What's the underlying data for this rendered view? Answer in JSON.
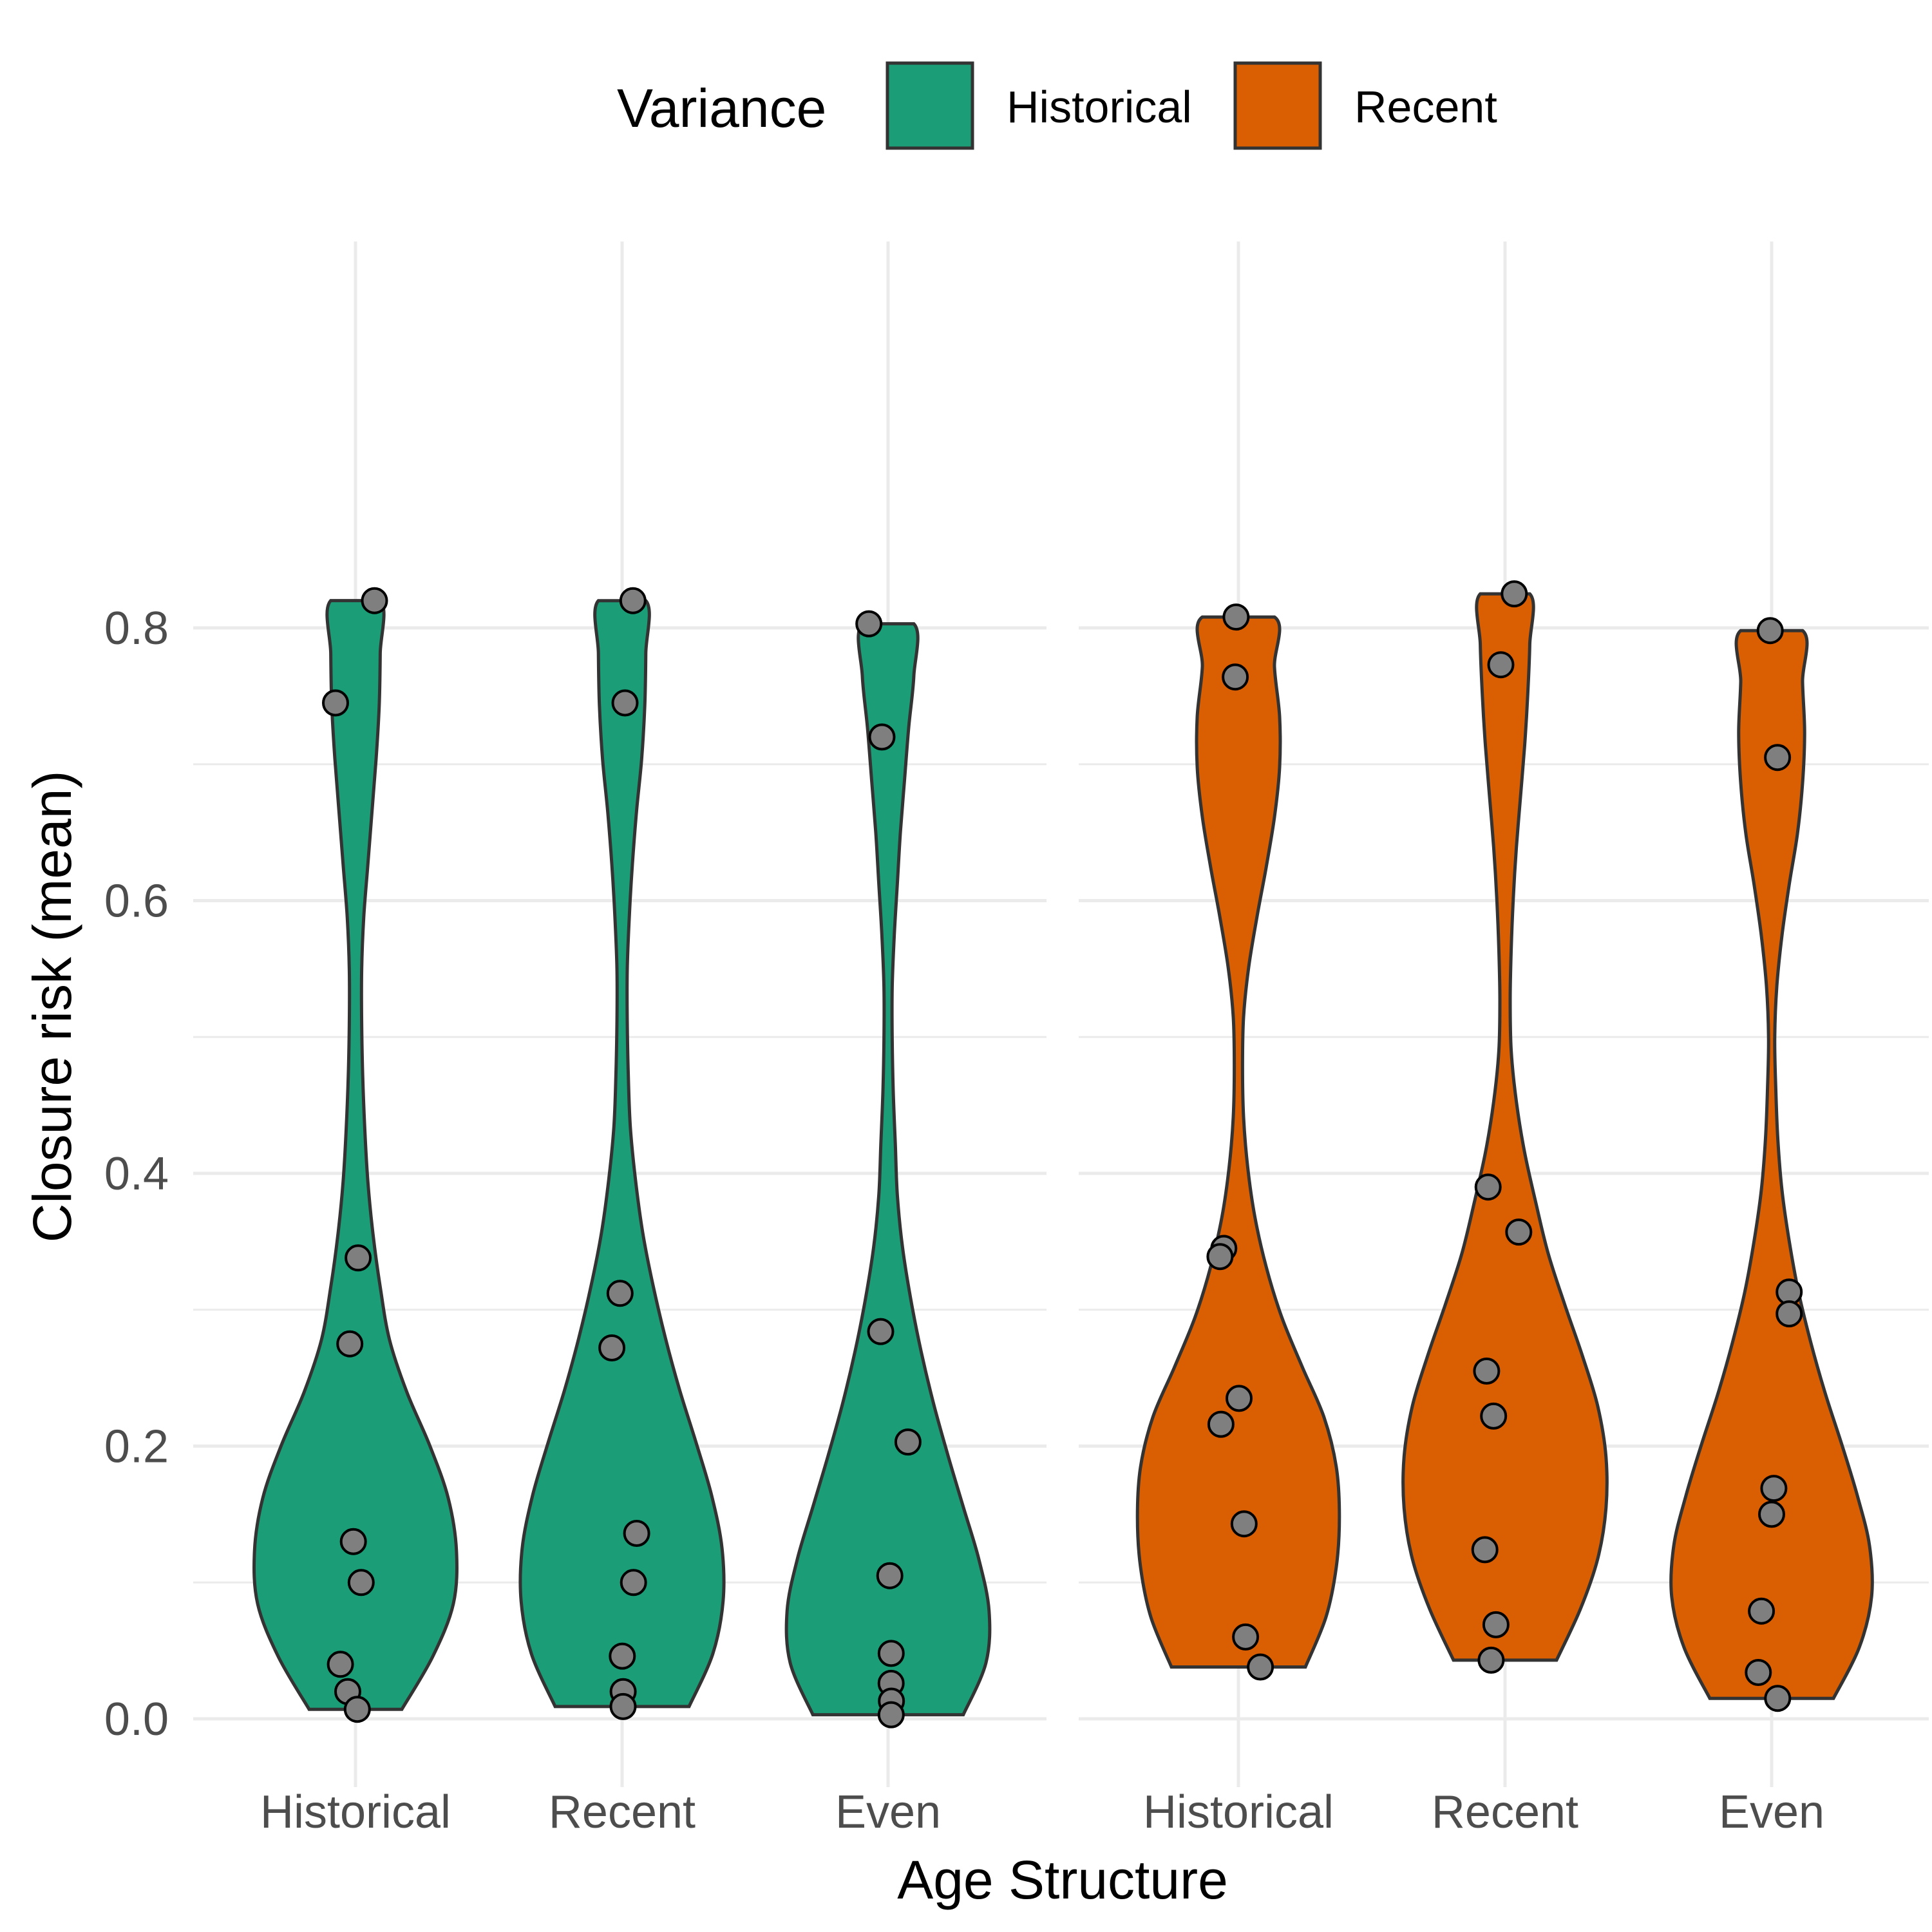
{
  "chart_data": {
    "type": "violin",
    "title": "",
    "xlabel": "Age Structure",
    "ylabel": "Closure risk (mean)",
    "ylim": [
      -0.05,
      0.87
    ],
    "yticks": [
      "0.0",
      "0.2",
      "0.4",
      "0.6",
      "0.8"
    ],
    "ytick_values": [
      0.0,
      0.2,
      0.4,
      0.6,
      0.8
    ],
    "grid": true,
    "legend": {
      "title": "Variance",
      "position": "top",
      "entries": [
        {
          "name": "Historical",
          "color": "#1b9e77"
        },
        {
          "name": "Recent",
          "color": "#d95f02"
        }
      ]
    },
    "panels": [
      {
        "variance": "Historical",
        "color": "#1b9e77",
        "categories": [
          "Historical",
          "Recent",
          "Even"
        ],
        "groups": [
          {
            "category": "Historical",
            "range": [
              0.007,
              0.82
            ],
            "density": [
              0.45,
              0.75,
              0.95,
              0.98,
              0.9,
              0.72,
              0.5,
              0.33,
              0.24,
              0.17,
              0.12,
              0.09,
              0.07,
              0.06,
              0.06,
              0.08,
              0.12,
              0.16,
              0.2,
              0.23,
              0.24,
              0.24
            ],
            "points": [
              0.82,
              0.745,
              0.338,
              0.275,
              0.13,
              0.1,
              0.04,
              0.02,
              0.007
            ]
          },
          {
            "category": "Recent",
            "range": [
              0.009,
              0.82
            ],
            "density": [
              0.65,
              0.88,
              0.98,
              0.97,
              0.87,
              0.72,
              0.56,
              0.42,
              0.3,
              0.2,
              0.13,
              0.08,
              0.06,
              0.05,
              0.05,
              0.07,
              0.1,
              0.14,
              0.19,
              0.22,
              0.23,
              0.23
            ],
            "points": [
              0.82,
              0.745,
              0.312,
              0.272,
              0.136,
              0.1,
              0.046,
              0.02,
              0.009
            ]
          },
          {
            "category": "Even",
            "range": [
              0.003,
              0.803
            ],
            "density": [
              0.73,
              0.95,
              0.98,
              0.88,
              0.73,
              0.58,
              0.44,
              0.32,
              0.22,
              0.14,
              0.09,
              0.07,
              0.05,
              0.04,
              0.04,
              0.06,
              0.09,
              0.12,
              0.16,
              0.2,
              0.25,
              0.25
            ],
            "points": [
              0.803,
              0.72,
              0.284,
              0.203,
              0.105,
              0.048,
              0.026,
              0.013,
              0.003
            ]
          }
        ]
      },
      {
        "variance": "Recent",
        "color": "#d95f02",
        "categories": [
          "Historical",
          "Recent",
          "Even"
        ],
        "groups": [
          {
            "category": "Historical",
            "range": [
              0.038,
              0.808
            ],
            "density": [
              0.65,
              0.85,
              0.95,
              0.98,
              0.95,
              0.83,
              0.62,
              0.42,
              0.27,
              0.16,
              0.09,
              0.05,
              0.04,
              0.05,
              0.1,
              0.18,
              0.27,
              0.35,
              0.4,
              0.4,
              0.35,
              0.35
            ],
            "points": [
              0.808,
              0.764,
              0.345,
              0.339,
              0.235,
              0.216,
              0.143,
              0.06,
              0.038
            ]
          },
          {
            "category": "Recent",
            "range": [
              0.043,
              0.825
            ],
            "density": [
              0.5,
              0.73,
              0.9,
              0.98,
              0.98,
              0.9,
              0.75,
              0.58,
              0.42,
              0.3,
              0.19,
              0.11,
              0.06,
              0.05,
              0.06,
              0.08,
              0.11,
              0.15,
              0.19,
              0.22,
              0.24,
              0.24
            ],
            "points": [
              0.825,
              0.773,
              0.39,
              0.357,
              0.255,
              0.222,
              0.124,
              0.069,
              0.043
            ]
          },
          {
            "category": "Even",
            "range": [
              0.015,
              0.798
            ],
            "density": [
              0.6,
              0.85,
              0.97,
              0.95,
              0.83,
              0.68,
              0.52,
              0.38,
              0.26,
              0.17,
              0.1,
              0.06,
              0.04,
              0.03,
              0.05,
              0.1,
              0.17,
              0.25,
              0.3,
              0.32,
              0.3,
              0.3
            ],
            "points": [
              0.798,
              0.705,
              0.313,
              0.297,
              0.169,
              0.15,
              0.079,
              0.034,
              0.015
            ]
          }
        ]
      }
    ]
  }
}
